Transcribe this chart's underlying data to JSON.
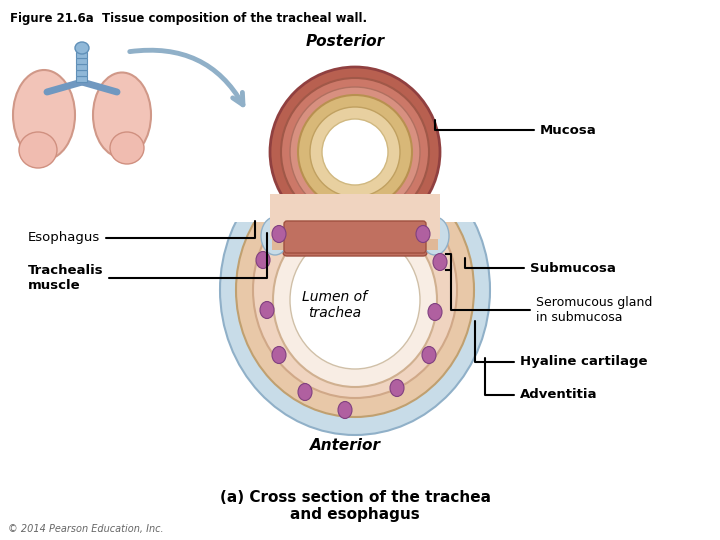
{
  "title": "Figure 21.6a  Tissue composition of the tracheal wall.",
  "subtitle": "(a) Cross section of the trachea\nand esophagus",
  "posterior_label": "Posterior",
  "anterior_label": "Anterior",
  "copyright": "© 2014 Pearson Education, Inc.",
  "bg_color": "#ffffff",
  "adventitia_color": "#c8dce8",
  "hyaline_color": "#e8c8a8",
  "submucosa_color": "#f0d4c0",
  "mucosa_color": "#c87060",
  "mucosa_inner_color": "#e09080",
  "cartilage_tan": "#d4a870",
  "lumen_color": "#ffffff",
  "gland_color": "#b060a0",
  "lung_color": "#f0c0b8"
}
